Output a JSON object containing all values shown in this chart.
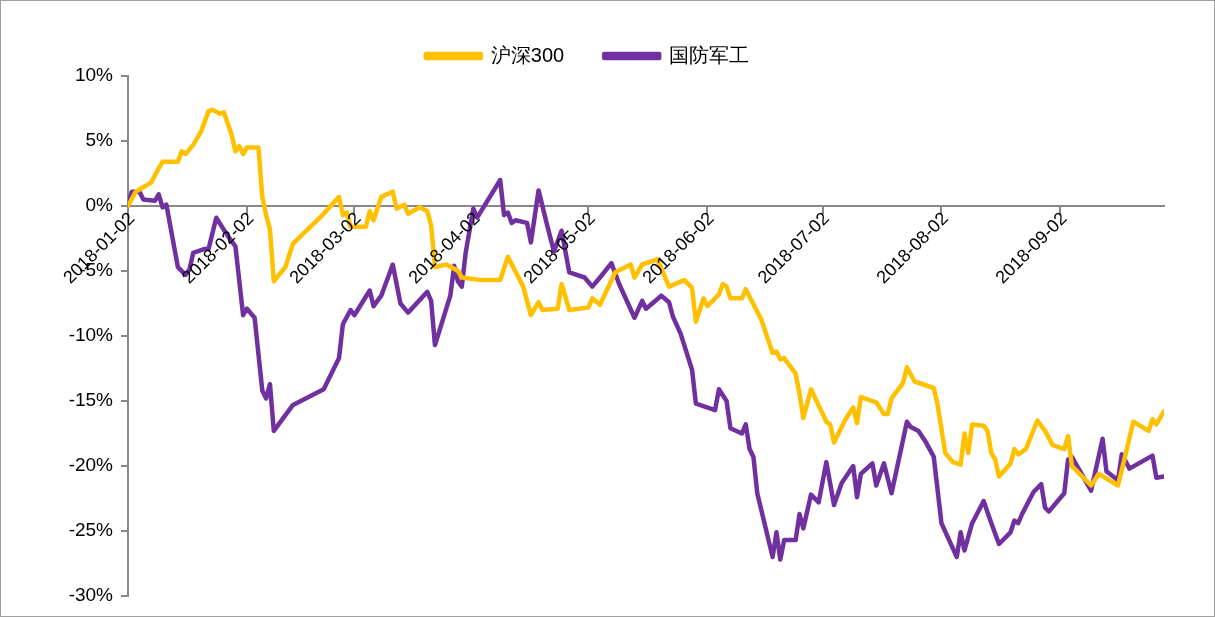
{
  "chart_data": {
    "type": "line",
    "legend": "top",
    "marker": "none",
    "grid": false,
    "ylim": [
      -30,
      10
    ],
    "yticks": [
      {
        "value": -30,
        "label": "-30%"
      },
      {
        "value": -25,
        "label": "-25%"
      },
      {
        "value": -20,
        "label": "-20%"
      },
      {
        "value": -15,
        "label": "-15%"
      },
      {
        "value": -10,
        "label": "-10%"
      },
      {
        "value": -5,
        "label": "-5%"
      },
      {
        "value": 0,
        "label": "0%"
      },
      {
        "value": 5,
        "label": "5%"
      },
      {
        "value": 10,
        "label": "10%"
      }
    ],
    "xlim": [
      "2018-01-02",
      "2018-09-29"
    ],
    "xticks": [
      "2018-01-02",
      "2018-02-02",
      "2018-03-02",
      "2018-04-02",
      "2018-05-02",
      "2018-06-02",
      "2018-07-02",
      "2018-08-02",
      "2018-09-02"
    ],
    "series": [
      {
        "name": "沪深300",
        "color": "#ffc000",
        "x": [
          "2018-01-02",
          "2018-01-04",
          "2018-01-08",
          "2018-01-10",
          "2018-01-11",
          "2018-01-15",
          "2018-01-16",
          "2018-01-17",
          "2018-01-19",
          "2018-01-21",
          "2018-01-23",
          "2018-01-24",
          "2018-01-26",
          "2018-01-27",
          "2018-01-29",
          "2018-01-30",
          "2018-01-31",
          "2018-02-01",
          "2018-02-02",
          "2018-02-05",
          "2018-02-06",
          "2018-02-07",
          "2018-02-08",
          "2018-02-09",
          "2018-02-12",
          "2018-02-14",
          "2018-02-21",
          "2018-02-26",
          "2018-02-27",
          "2018-02-28",
          "2018-03-01",
          "2018-03-05",
          "2018-03-06",
          "2018-03-07",
          "2018-03-09",
          "2018-03-12",
          "2018-03-13",
          "2018-03-15",
          "2018-03-16",
          "2018-03-19",
          "2018-03-21",
          "2018-03-22",
          "2018-03-23",
          "2018-03-26",
          "2018-03-29",
          "2018-03-30",
          "2018-04-04",
          "2018-04-09",
          "2018-04-11",
          "2018-04-15",
          "2018-04-17",
          "2018-04-19",
          "2018-04-20",
          "2018-04-24",
          "2018-04-25",
          "2018-04-27",
          "2018-05-02",
          "2018-05-03",
          "2018-05-05",
          "2018-05-09",
          "2018-05-13",
          "2018-05-14",
          "2018-05-16",
          "2018-05-20",
          "2018-05-23",
          "2018-05-27",
          "2018-05-29",
          "2018-05-30",
          "2018-06-01",
          "2018-06-02",
          "2018-06-05",
          "2018-06-06",
          "2018-06-07",
          "2018-06-08",
          "2018-06-11",
          "2018-06-12",
          "2018-06-16",
          "2018-06-19",
          "2018-06-20",
          "2018-06-21",
          "2018-06-22",
          "2018-06-25",
          "2018-06-26",
          "2018-06-27",
          "2018-06-29",
          "2018-07-03",
          "2018-07-04",
          "2018-07-05",
          "2018-07-08",
          "2018-07-10",
          "2018-07-11",
          "2018-07-12",
          "2018-07-16",
          "2018-07-18",
          "2018-07-19",
          "2018-07-20",
          "2018-07-23",
          "2018-07-24",
          "2018-07-26",
          "2018-07-31",
          "2018-08-01",
          "2018-08-03",
          "2018-08-05",
          "2018-08-07",
          "2018-08-08",
          "2018-08-09",
          "2018-08-10",
          "2018-08-13",
          "2018-08-14",
          "2018-08-15",
          "2018-08-16",
          "2018-08-17",
          "2018-08-20",
          "2018-08-21",
          "2018-08-22",
          "2018-08-24",
          "2018-08-27",
          "2018-08-29",
          "2018-08-31",
          "2018-09-03",
          "2018-09-04",
          "2018-09-05",
          "2018-09-10",
          "2018-09-12",
          "2018-09-17",
          "2018-09-19",
          "2018-09-21",
          "2018-09-25",
          "2018-09-26",
          "2018-09-27",
          "2018-09-29"
        ],
        "values": [
          0,
          1.1,
          1.8,
          2.9,
          3.4,
          3.4,
          4.2,
          4.0,
          4.7,
          5.7,
          7.3,
          7.4,
          7.1,
          7.2,
          5.5,
          4.2,
          4.6,
          4.0,
          4.5,
          4.5,
          0.7,
          -0.7,
          -1.8,
          -5.8,
          -4.7,
          -2.9,
          -0.9,
          0.7,
          -0.7,
          -0.5,
          -1.6,
          -1.6,
          -0.4,
          -1.1,
          0.7,
          1.1,
          -0.2,
          0.1,
          -0.6,
          -0.1,
          -0.4,
          -1.5,
          -4.7,
          -4.5,
          -5.0,
          -5.5,
          -5.7,
          -5.7,
          -3.9,
          -6.2,
          -8.4,
          -7.4,
          -8.0,
          -7.9,
          -6.0,
          -8.0,
          -7.8,
          -7.1,
          -7.6,
          -5.1,
          -4.5,
          -5.5,
          -4.5,
          -4.1,
          -6.2,
          -5.7,
          -6.3,
          -8.9,
          -7.1,
          -7.7,
          -6.8,
          -6.0,
          -6.2,
          -7.1,
          -7.1,
          -6.4,
          -8.7,
          -11.3,
          -11.2,
          -11.8,
          -11.7,
          -12.9,
          -14.4,
          -16.3,
          -14.1,
          -16.6,
          -16.8,
          -18.2,
          -16.4,
          -15.5,
          -16.7,
          -14.7,
          -15.1,
          -16.0,
          -16.0,
          -14.8,
          -13.6,
          -12.4,
          -13.5,
          -14.0,
          -15.3,
          -19.0,
          -19.7,
          -19.9,
          -17.5,
          -19.0,
          -16.8,
          -16.9,
          -17.3,
          -19.0,
          -19.5,
          -20.8,
          -19.8,
          -18.7,
          -19.1,
          -18.7,
          -16.5,
          -17.3,
          -18.4,
          -18.7,
          -17.7,
          -20.0,
          -21.5,
          -20.6,
          -21.5,
          -19.1,
          -16.6,
          -17.3,
          -16.4,
          -16.8,
          -15.8
        ]
      },
      {
        "name": "国防军工",
        "color": "#7030a0",
        "x": [
          "2018-01-02",
          "2018-01-03",
          "2018-01-05",
          "2018-01-06",
          "2018-01-09",
          "2018-01-10",
          "2018-01-11",
          "2018-01-12",
          "2018-01-15",
          "2018-01-17",
          "2018-01-18",
          "2018-01-19",
          "2018-01-22",
          "2018-01-23",
          "2018-01-25",
          "2018-01-28",
          "2018-01-30",
          "2018-02-01",
          "2018-02-02",
          "2018-02-04",
          "2018-02-06",
          "2018-02-07",
          "2018-02-08",
          "2018-02-09",
          "2018-02-14",
          "2018-02-22",
          "2018-02-26",
          "2018-02-27",
          "2018-03-01",
          "2018-03-02",
          "2018-03-06",
          "2018-03-07",
          "2018-03-09",
          "2018-03-12",
          "2018-03-14",
          "2018-03-16",
          "2018-03-21",
          "2018-03-22",
          "2018-03-23",
          "2018-03-27",
          "2018-03-28",
          "2018-03-29",
          "2018-03-30",
          "2018-03-31",
          "2018-04-02",
          "2018-04-03",
          "2018-04-09",
          "2018-04-10",
          "2018-04-11",
          "2018-04-12",
          "2018-04-13",
          "2018-04-16",
          "2018-04-17",
          "2018-04-19",
          "2018-04-21",
          "2018-04-23",
          "2018-04-25",
          "2018-04-27",
          "2018-05-01",
          "2018-05-03",
          "2018-05-05",
          "2018-05-08",
          "2018-05-10",
          "2018-05-14",
          "2018-05-16",
          "2018-05-17",
          "2018-05-21",
          "2018-05-23",
          "2018-05-24",
          "2018-05-26",
          "2018-05-29",
          "2018-05-30",
          "2018-05-31",
          "2018-06-04",
          "2018-06-05",
          "2018-06-07",
          "2018-06-08",
          "2018-06-11",
          "2018-06-12",
          "2018-06-13",
          "2018-06-14",
          "2018-06-15",
          "2018-06-19",
          "2018-06-20",
          "2018-06-21",
          "2018-06-22",
          "2018-06-25",
          "2018-06-26",
          "2018-06-27",
          "2018-06-29",
          "2018-07-01",
          "2018-07-03",
          "2018-07-05",
          "2018-07-07",
          "2018-07-10",
          "2018-07-11",
          "2018-07-12",
          "2018-07-15",
          "2018-07-16",
          "2018-07-18",
          "2018-07-20",
          "2018-07-24",
          "2018-07-25",
          "2018-07-27",
          "2018-07-29",
          "2018-07-31",
          "2018-08-02",
          "2018-08-04",
          "2018-08-06",
          "2018-08-07",
          "2018-08-08",
          "2018-08-10",
          "2018-08-13",
          "2018-08-15",
          "2018-08-17",
          "2018-08-20",
          "2018-08-21",
          "2018-08-22",
          "2018-08-23",
          "2018-08-26",
          "2018-08-28",
          "2018-08-29",
          "2018-08-30",
          "2018-09-03",
          "2018-09-04",
          "2018-09-05",
          "2018-09-10",
          "2018-09-13",
          "2018-09-14",
          "2018-09-17",
          "2018-09-18",
          "2018-09-20",
          "2018-09-26",
          "2018-09-27",
          "2018-09-29"
        ],
        "values": [
          0,
          1.1,
          1.1,
          0.5,
          0.4,
          0.9,
          -0.1,
          0.1,
          -4.7,
          -5.3,
          -4.9,
          -3.6,
          -3.3,
          -3.3,
          -0.9,
          -2.3,
          -3.1,
          -8.4,
          -7.9,
          -8.6,
          -14.2,
          -14.8,
          -13.7,
          -17.3,
          -15.3,
          -14.1,
          -11.7,
          -9.1,
          -8.0,
          -8.4,
          -6.5,
          -7.7,
          -6.9,
          -4.5,
          -7.5,
          -8.2,
          -6.6,
          -7.3,
          -10.7,
          -6.9,
          -4.6,
          -5.8,
          -6.2,
          -3.6,
          -0.2,
          -0.9,
          2.0,
          -0.7,
          -0.5,
          -1.3,
          -1.1,
          -1.3,
          -2.8,
          1.2,
          -1.2,
          -3.5,
          -1.9,
          -5.1,
          -5.5,
          -6.2,
          -5.5,
          -4.4,
          -6.0,
          -8.6,
          -7.3,
          -7.9,
          -6.9,
          -7.4,
          -8.5,
          -9.8,
          -12.6,
          -15.2,
          -15.3,
          -15.7,
          -14.1,
          -15.0,
          -17.1,
          -17.5,
          -16.8,
          -18.7,
          -19.3,
          -22.1,
          -27.0,
          -25.1,
          -27.2,
          -25.7,
          -25.7,
          -23.7,
          -24.8,
          -22.2,
          -22.8,
          -19.7,
          -23.0,
          -21.3,
          -20.0,
          -22.4,
          -20.6,
          -19.8,
          -21.5,
          -19.8,
          -22.1,
          -16.6,
          -17.0,
          -17.3,
          -18.2,
          -19.3,
          -24.4,
          -25.7,
          -27.0,
          -25.1,
          -26.5,
          -24.4,
          -22.7,
          -24.4,
          -26.0,
          -25.1,
          -24.2,
          -24.4,
          -23.7,
          -22.0,
          -21.4,
          -23.2,
          -23.5,
          -22.1,
          -19.5,
          -19.3,
          -21.9,
          -17.9,
          -20.4,
          -21.1,
          -19.1,
          -20.2,
          -19.2,
          -20.9,
          -20.8
        ]
      }
    ]
  }
}
